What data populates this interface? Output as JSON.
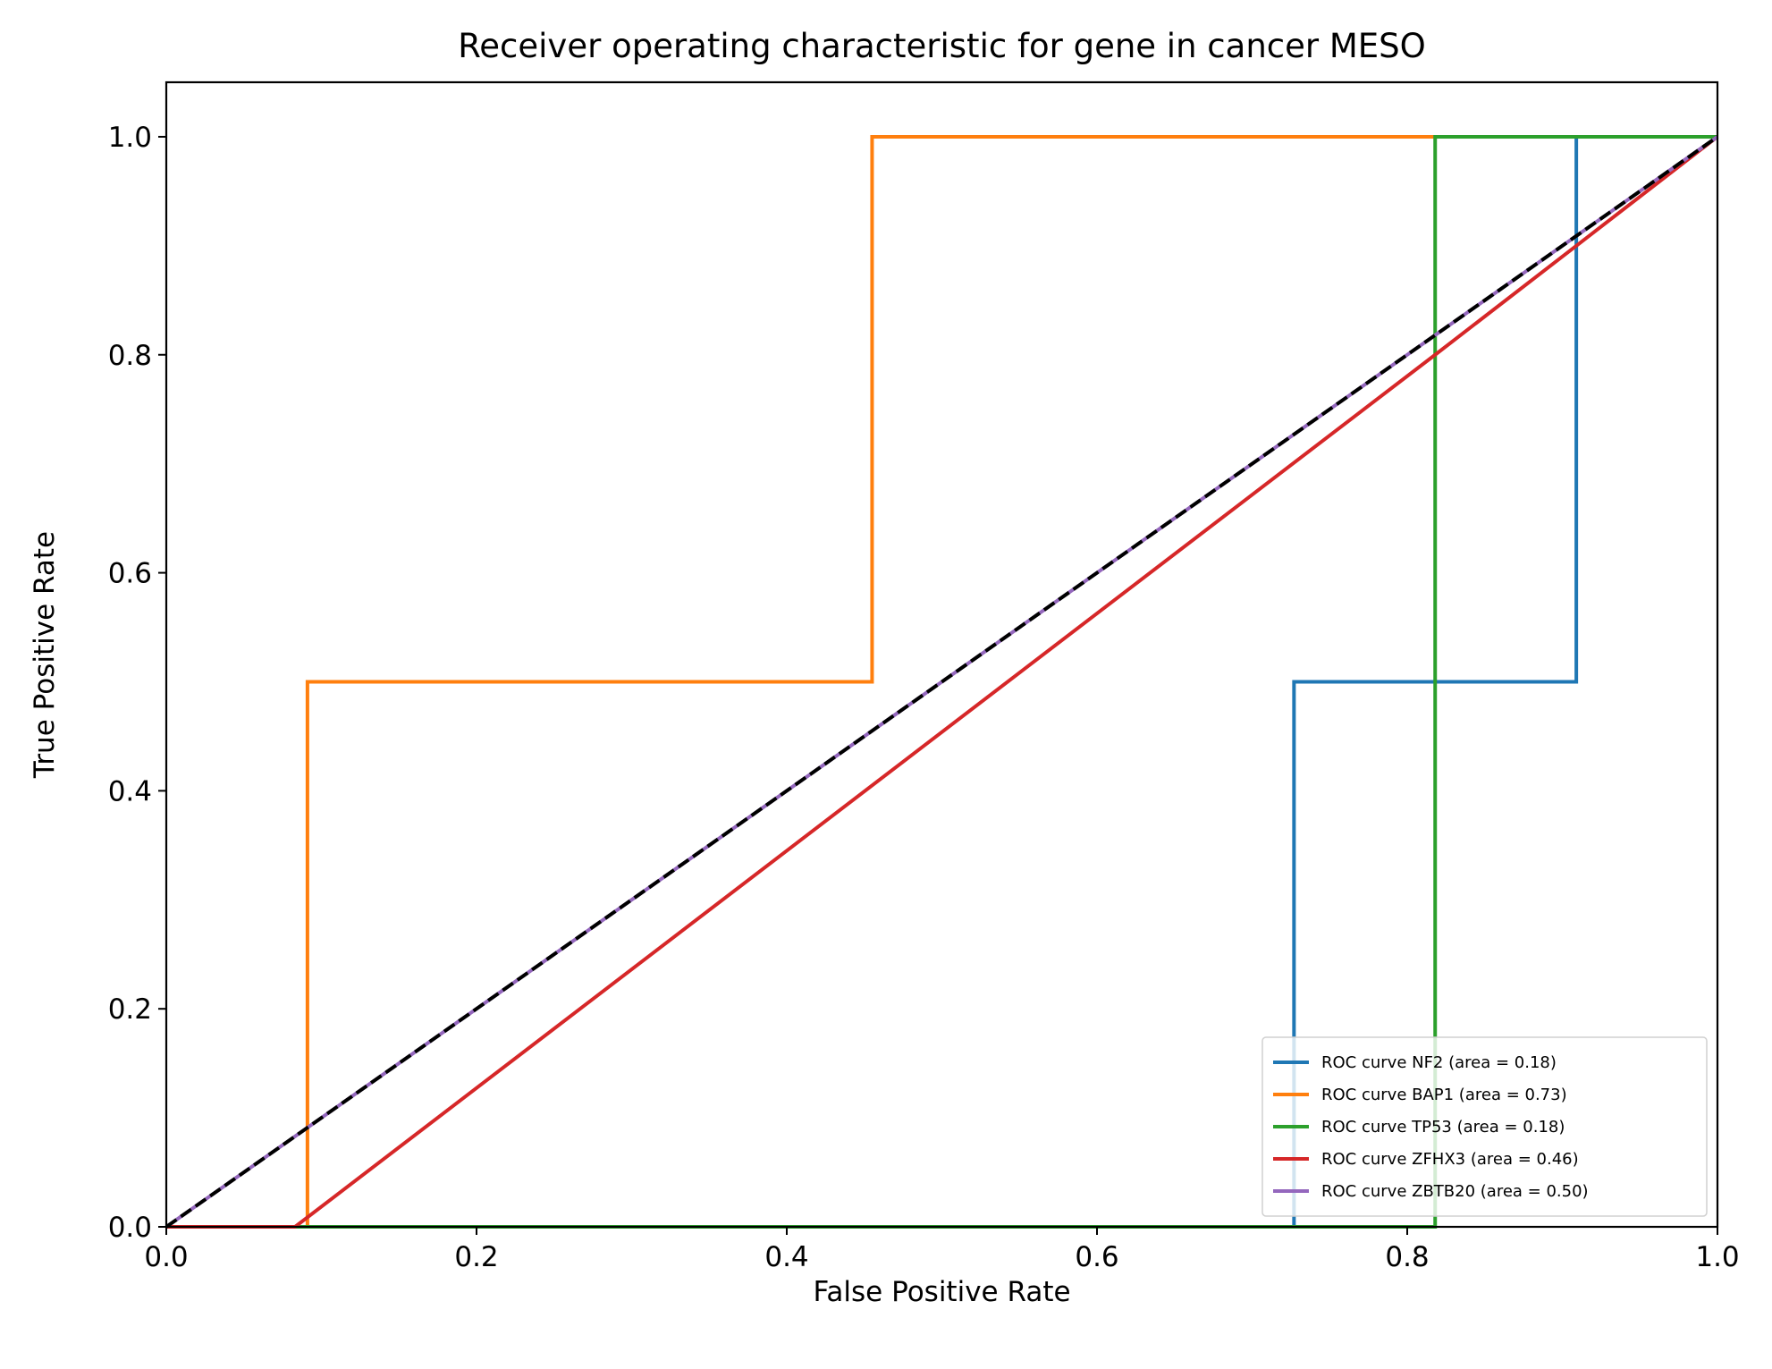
{
  "chart_data": {
    "type": "line",
    "title": "Receiver operating characteristic for gene in cancer MESO",
    "xlabel": "False Positive Rate",
    "ylabel": "True Positive Rate",
    "xlim": [
      0.0,
      1.0
    ],
    "ylim": [
      0.0,
      1.05
    ],
    "xticks": [
      "0.0",
      "0.2",
      "0.4",
      "0.6",
      "0.8",
      "1.0"
    ],
    "yticks": [
      "0.0",
      "0.2",
      "0.4",
      "0.6",
      "0.8",
      "1.0"
    ],
    "grid": false,
    "legend_position": "lower-right",
    "series": [
      {
        "name": "ROC curve NF2 (area = 0.18)",
        "color": "#1f77b4",
        "x": [
          0.0,
          0.727,
          0.727,
          0.909,
          0.909,
          1.0
        ],
        "y": [
          0.0,
          0.0,
          0.5,
          0.5,
          1.0,
          1.0
        ]
      },
      {
        "name": "ROC curve BAP1 (area = 0.73)",
        "color": "#ff7f0e",
        "x": [
          0.0,
          0.091,
          0.091,
          0.455,
          0.455,
          1.0
        ],
        "y": [
          0.0,
          0.0,
          0.5,
          0.5,
          1.0,
          1.0
        ]
      },
      {
        "name": "ROC curve TP53 (area = 0.18)",
        "color": "#2ca02c",
        "x": [
          0.0,
          0.818,
          0.818,
          1.0
        ],
        "y": [
          0.0,
          0.0,
          1.0,
          1.0
        ]
      },
      {
        "name": "ROC curve ZFHX3 (area = 0.46)",
        "color": "#d62728",
        "x": [
          0.0,
          0.083,
          0.818,
          1.0
        ],
        "y": [
          0.0,
          0.0,
          0.8,
          1.0
        ]
      },
      {
        "name": "ROC curve ZBTB20 (area = 0.50)",
        "color": "#9467bd",
        "x": [
          0.0,
          1.0
        ],
        "y": [
          0.0,
          1.0
        ]
      }
    ],
    "reference_line": {
      "color": "#000000",
      "style": "dashed",
      "x": [
        0.0,
        1.0
      ],
      "y": [
        0.0,
        1.0
      ]
    }
  }
}
